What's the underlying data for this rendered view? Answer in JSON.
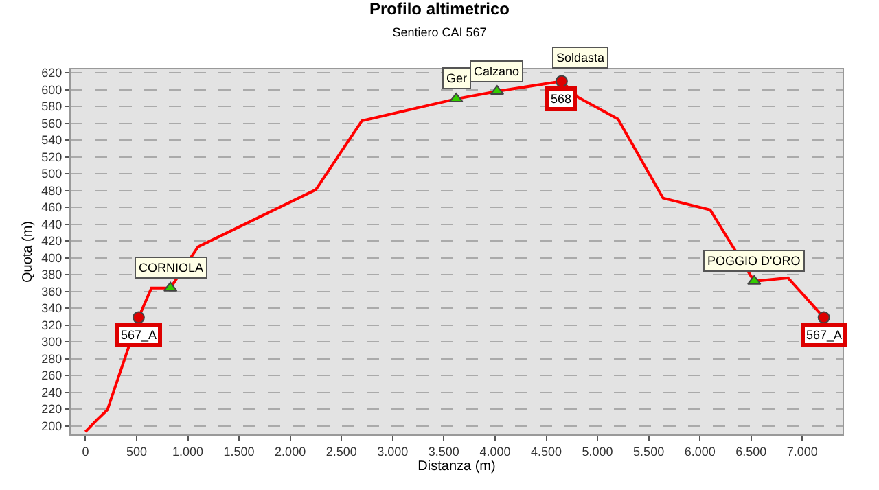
{
  "chart_data": {
    "type": "line",
    "title": "Profilo altimetrico",
    "subtitle": "Sentiero CAI 567",
    "xlabel": "Distanza (m)",
    "ylabel": "Quota (m)",
    "series": [
      {
        "color": "#ff0000",
        "marker": "none",
        "x": [
          0,
          120,
          215,
          520,
          645,
          830,
          1100,
          2250,
          2700,
          3620,
          4020,
          4650,
          4810,
          5200,
          5640,
          6100,
          6530,
          6860,
          7210
        ],
        "values": [
          193,
          208,
          219,
          329,
          364,
          364,
          413,
          481,
          563,
          589,
          598,
          610,
          591,
          565,
          471,
          457,
          372,
          376,
          329
        ]
      },
      {
        "type": "scatter",
        "color": "#33cc00",
        "marker": "triangle",
        "x": [
          830,
          3620,
          4020,
          6530
        ],
        "values": [
          364,
          589,
          598,
          372
        ]
      },
      {
        "type": "scatter",
        "color": "#dd0000",
        "marker": "circle",
        "x": [
          520,
          4650,
          7210
        ],
        "values": [
          329,
          610,
          329
        ]
      }
    ],
    "annotations": [
      {
        "text": "CORNIOLA",
        "x": 830,
        "y": 364
      },
      {
        "text": "Ger",
        "x": 3620,
        "y": 589
      },
      {
        "text": "Calzano",
        "x": 4020,
        "y": 598
      },
      {
        "text": "567_A",
        "x": 520,
        "y": 329
      },
      {
        "text": "568",
        "x": 4650,
        "y": 610
      },
      {
        "text": "Soldasta",
        "x": 4650,
        "y": 610
      },
      {
        "text": "567_A",
        "x": 7210,
        "y": 329
      },
      {
        "text": "POGGIO D'ORO",
        "x": 6530,
        "y": 372
      }
    ],
    "xlim": [
      -150,
      7400
    ],
    "xticks": [
      0,
      500,
      {
        "value": 1000,
        "label": "1.000"
      },
      {
        "value": 1500,
        "label": "1.500"
      },
      {
        "value": 2000,
        "label": "2.000"
      },
      {
        "value": 2500,
        "label": "2.500"
      },
      {
        "value": 3000,
        "label": "3.000"
      },
      {
        "value": 3500,
        "label": "3.500"
      },
      {
        "value": 4000,
        "label": "4.000"
      },
      {
        "value": 4500,
        "label": "4.500"
      },
      {
        "value": 5000,
        "label": "5.000"
      },
      {
        "value": 5500,
        "label": "5.500"
      },
      {
        "value": 6000,
        "label": "6.000"
      },
      {
        "value": 6500,
        "label": "6.500"
      },
      {
        "value": 7000,
        "label": "7.000"
      }
    ],
    "ylim": [
      189,
      625
    ],
    "yticks": [
      200,
      220,
      240,
      260,
      280,
      300,
      320,
      340,
      360,
      380,
      400,
      420,
      440,
      460,
      480,
      500,
      520,
      540,
      560,
      580,
      600,
      620
    ],
    "grid": "y"
  }
}
